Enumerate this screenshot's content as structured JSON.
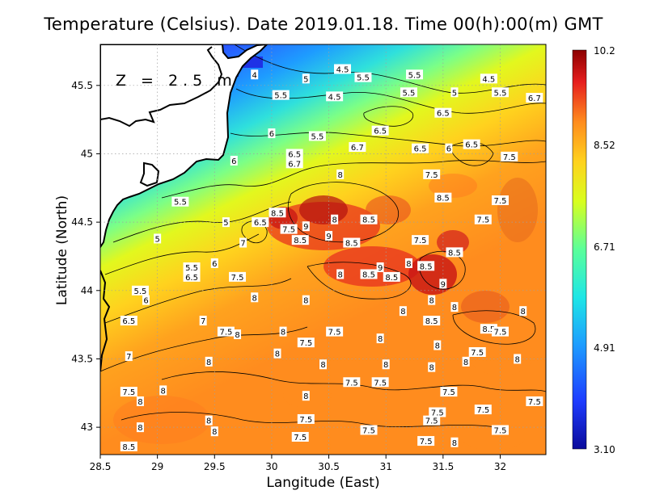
{
  "title": "Temperature (Celsius). Date 2019.01.18. Time 00(h):00(m)  GMT",
  "depth_label": "Z = 2.5 m",
  "chart_data": {
    "type": "heatmap",
    "variable": "Temperature (Celsius)",
    "xlabel": "Langitude (East)",
    "ylabel": "Latitude (North)",
    "xlim": [
      28.5,
      32.4
    ],
    "ylim": [
      42.8,
      45.8
    ],
    "x_ticks": [
      "28.5",
      "29",
      "29.5",
      "30",
      "30.5",
      "31",
      "31.5",
      "32"
    ],
    "y_ticks": [
      "43",
      "43.5",
      "44",
      "44.5",
      "45",
      "45.5"
    ],
    "grid": true,
    "colorbar": {
      "min": 3.1,
      "max": 10.2,
      "tick_labels": [
        "10.2",
        "8.52",
        "6.71",
        "4.91",
        "3.10"
      ],
      "colors": [
        "#0a0a9a",
        "#1e3cff",
        "#1e9cff",
        "#1ee6e6",
        "#5aff9a",
        "#d8ff1e",
        "#ffd21e",
        "#ff8c1e",
        "#e61e1e",
        "#8c0000"
      ]
    },
    "contour_labels": [
      {
        "x": 30.62,
        "y": 45.62,
        "text": "4.5"
      },
      {
        "x": 30.3,
        "y": 45.55,
        "text": "5"
      },
      {
        "x": 29.85,
        "y": 45.58,
        "text": "4"
      },
      {
        "x": 30.8,
        "y": 45.56,
        "text": "5.5"
      },
      {
        "x": 31.25,
        "y": 45.58,
        "text": "5.5"
      },
      {
        "x": 31.9,
        "y": 45.55,
        "text": "4.5"
      },
      {
        "x": 31.2,
        "y": 45.45,
        "text": "5.5"
      },
      {
        "x": 32.0,
        "y": 45.45,
        "text": "5.5"
      },
      {
        "x": 30.08,
        "y": 45.43,
        "text": "5.5"
      },
      {
        "x": 30.55,
        "y": 45.42,
        "text": "4.5"
      },
      {
        "x": 31.5,
        "y": 45.3,
        "text": "6.5"
      },
      {
        "x": 31.6,
        "y": 45.45,
        "text": "5"
      },
      {
        "x": 32.3,
        "y": 45.41,
        "text": "6.7"
      },
      {
        "x": 30.95,
        "y": 45.17,
        "text": "6.5"
      },
      {
        "x": 30.0,
        "y": 45.15,
        "text": "6"
      },
      {
        "x": 30.4,
        "y": 45.13,
        "text": "5.5"
      },
      {
        "x": 30.75,
        "y": 45.05,
        "text": "6.7"
      },
      {
        "x": 30.2,
        "y": 45.0,
        "text": "6.5"
      },
      {
        "x": 31.3,
        "y": 45.04,
        "text": "6.5"
      },
      {
        "x": 31.55,
        "y": 45.04,
        "text": "6"
      },
      {
        "x": 31.75,
        "y": 45.07,
        "text": "6.5"
      },
      {
        "x": 32.08,
        "y": 44.98,
        "text": "7.5"
      },
      {
        "x": 29.67,
        "y": 44.95,
        "text": "6"
      },
      {
        "x": 30.2,
        "y": 44.93,
        "text": "6.7"
      },
      {
        "x": 30.6,
        "y": 44.85,
        "text": "8"
      },
      {
        "x": 31.4,
        "y": 44.85,
        "text": "7.5"
      },
      {
        "x": 29.2,
        "y": 44.65,
        "text": "5.5"
      },
      {
        "x": 29.6,
        "y": 44.5,
        "text": "5"
      },
      {
        "x": 30.05,
        "y": 44.57,
        "text": "8.5"
      },
      {
        "x": 30.55,
        "y": 44.52,
        "text": "8"
      },
      {
        "x": 30.85,
        "y": 44.52,
        "text": "8.5"
      },
      {
        "x": 31.5,
        "y": 44.68,
        "text": "8.5"
      },
      {
        "x": 31.85,
        "y": 44.52,
        "text": "7.5"
      },
      {
        "x": 32.0,
        "y": 44.66,
        "text": "7.5"
      },
      {
        "x": 29.9,
        "y": 44.5,
        "text": "6.5"
      },
      {
        "x": 30.3,
        "y": 44.47,
        "text": "9"
      },
      {
        "x": 30.15,
        "y": 44.45,
        "text": "7.5"
      },
      {
        "x": 30.25,
        "y": 44.37,
        "text": "8.5"
      },
      {
        "x": 30.5,
        "y": 44.4,
        "text": "9"
      },
      {
        "x": 30.7,
        "y": 44.35,
        "text": "8.5"
      },
      {
        "x": 31.3,
        "y": 44.37,
        "text": "7.5"
      },
      {
        "x": 31.6,
        "y": 44.28,
        "text": "8.5"
      },
      {
        "x": 29.0,
        "y": 44.38,
        "text": "5"
      },
      {
        "x": 29.75,
        "y": 44.35,
        "text": "7"
      },
      {
        "x": 29.3,
        "y": 44.17,
        "text": "5.5"
      },
      {
        "x": 29.3,
        "y": 44.1,
        "text": "6.5"
      },
      {
        "x": 29.5,
        "y": 44.2,
        "text": "6"
      },
      {
        "x": 29.7,
        "y": 44.1,
        "text": "7.5"
      },
      {
        "x": 30.6,
        "y": 44.12,
        "text": "8"
      },
      {
        "x": 30.85,
        "y": 44.12,
        "text": "8.5"
      },
      {
        "x": 30.95,
        "y": 44.17,
        "text": "9"
      },
      {
        "x": 31.2,
        "y": 44.2,
        "text": "8"
      },
      {
        "x": 31.35,
        "y": 44.18,
        "text": "8.5"
      },
      {
        "x": 31.05,
        "y": 44.1,
        "text": "8.5"
      },
      {
        "x": 31.5,
        "y": 44.05,
        "text": "9"
      },
      {
        "x": 28.85,
        "y": 44.0,
        "text": "5.5"
      },
      {
        "x": 28.9,
        "y": 43.93,
        "text": "6"
      },
      {
        "x": 29.85,
        "y": 43.95,
        "text": "8"
      },
      {
        "x": 30.3,
        "y": 43.93,
        "text": "8"
      },
      {
        "x": 31.15,
        "y": 43.85,
        "text": "8"
      },
      {
        "x": 31.4,
        "y": 43.93,
        "text": "8"
      },
      {
        "x": 31.6,
        "y": 43.88,
        "text": "8"
      },
      {
        "x": 32.2,
        "y": 43.85,
        "text": "8"
      },
      {
        "x": 28.75,
        "y": 43.78,
        "text": "6.5"
      },
      {
        "x": 29.4,
        "y": 43.78,
        "text": "7"
      },
      {
        "x": 29.6,
        "y": 43.7,
        "text": "7.5"
      },
      {
        "x": 29.7,
        "y": 43.68,
        "text": "8"
      },
      {
        "x": 30.1,
        "y": 43.7,
        "text": "8"
      },
      {
        "x": 30.55,
        "y": 43.7,
        "text": "7.5"
      },
      {
        "x": 30.95,
        "y": 43.65,
        "text": "8"
      },
      {
        "x": 31.4,
        "y": 43.78,
        "text": "8.5"
      },
      {
        "x": 31.9,
        "y": 43.72,
        "text": "8.5"
      },
      {
        "x": 32.0,
        "y": 43.7,
        "text": "7.5"
      },
      {
        "x": 30.3,
        "y": 43.62,
        "text": "7.5"
      },
      {
        "x": 30.05,
        "y": 43.54,
        "text": "8"
      },
      {
        "x": 31.45,
        "y": 43.6,
        "text": "8"
      },
      {
        "x": 31.8,
        "y": 43.55,
        "text": "7.5"
      },
      {
        "x": 28.75,
        "y": 43.52,
        "text": "7"
      },
      {
        "x": 29.45,
        "y": 43.48,
        "text": "8"
      },
      {
        "x": 30.45,
        "y": 43.46,
        "text": "8"
      },
      {
        "x": 31.0,
        "y": 43.46,
        "text": "8"
      },
      {
        "x": 31.4,
        "y": 43.44,
        "text": "8"
      },
      {
        "x": 31.7,
        "y": 43.48,
        "text": "8"
      },
      {
        "x": 32.15,
        "y": 43.5,
        "text": "8"
      },
      {
        "x": 30.7,
        "y": 43.33,
        "text": "7.5"
      },
      {
        "x": 30.95,
        "y": 43.33,
        "text": "7.5"
      },
      {
        "x": 28.75,
        "y": 43.26,
        "text": "7.5"
      },
      {
        "x": 29.05,
        "y": 43.27,
        "text": "8"
      },
      {
        "x": 28.85,
        "y": 43.19,
        "text": "8"
      },
      {
        "x": 30.3,
        "y": 43.23,
        "text": "8"
      },
      {
        "x": 31.55,
        "y": 43.26,
        "text": "7.5"
      },
      {
        "x": 32.3,
        "y": 43.19,
        "text": "7.5"
      },
      {
        "x": 31.45,
        "y": 43.11,
        "text": "7.5"
      },
      {
        "x": 31.85,
        "y": 43.13,
        "text": "7.5"
      },
      {
        "x": 30.3,
        "y": 43.06,
        "text": "7.5"
      },
      {
        "x": 29.45,
        "y": 43.05,
        "text": "8"
      },
      {
        "x": 28.85,
        "y": 43.0,
        "text": "8"
      },
      {
        "x": 31.4,
        "y": 43.05,
        "text": "7.5"
      },
      {
        "x": 29.5,
        "y": 42.97,
        "text": "8"
      },
      {
        "x": 32.0,
        "y": 42.98,
        "text": "7.5"
      },
      {
        "x": 30.85,
        "y": 42.98,
        "text": "7.5"
      },
      {
        "x": 30.25,
        "y": 42.93,
        "text": "7.5"
      },
      {
        "x": 28.75,
        "y": 42.86,
        "text": "8.5"
      },
      {
        "x": 31.35,
        "y": 42.9,
        "text": "7.5"
      },
      {
        "x": 31.6,
        "y": 42.89,
        "text": "8"
      }
    ]
  }
}
